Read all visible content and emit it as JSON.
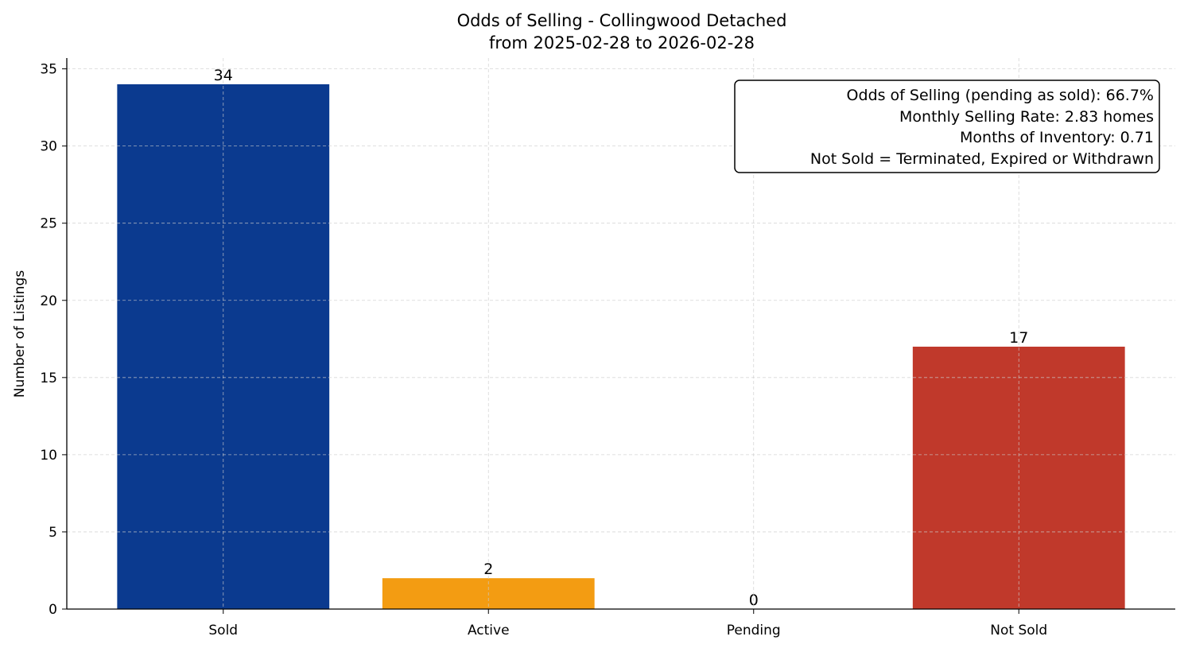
{
  "chart_data": {
    "type": "bar",
    "title": "Odds of Selling - Collingwood Detached",
    "subtitle": "from 2025-02-28 to 2026-02-28",
    "xlabel": "",
    "ylabel": "Number of Listings",
    "categories": [
      "Sold",
      "Active",
      "Pending",
      "Not Sold"
    ],
    "values": [
      34,
      2,
      0,
      17
    ],
    "colors": [
      "#0b3a8f",
      "#f39c12",
      "#f39c12",
      "#c0392b"
    ],
    "ylim": [
      0,
      35.7
    ],
    "yticks": [
      0,
      5,
      10,
      15,
      20,
      25,
      30,
      35
    ],
    "grid": true,
    "annotation_box": {
      "position": "top-right",
      "lines": [
        "Odds of Selling (pending as sold): 66.7%",
        "Monthly Selling Rate: 2.83 homes",
        "Months of Inventory: 0.71",
        "Not Sold = Terminated, Expired or Withdrawn"
      ]
    }
  }
}
